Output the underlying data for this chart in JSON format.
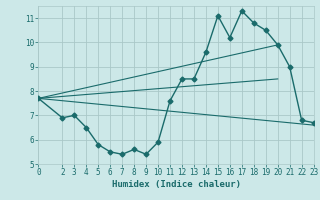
{
  "title": "",
  "xlabel": "Humidex (Indice chaleur)",
  "background_color": "#cce8e8",
  "grid_color": "#aac8c8",
  "line_color": "#1a6b6b",
  "xlim": [
    0,
    23
  ],
  "ylim": [
    5,
    11.5
  ],
  "yticks": [
    5,
    6,
    7,
    8,
    9,
    10,
    11
  ],
  "xticks": [
    0,
    2,
    3,
    4,
    5,
    6,
    7,
    8,
    9,
    10,
    11,
    12,
    13,
    14,
    15,
    16,
    17,
    18,
    19,
    20,
    21,
    22,
    23
  ],
  "series_main": {
    "x": [
      0,
      2,
      3,
      4,
      5,
      6,
      7,
      8,
      9,
      10,
      11,
      12,
      13,
      14,
      15,
      16,
      17,
      18,
      19,
      20,
      21,
      22,
      23
    ],
    "y": [
      7.7,
      6.9,
      7.0,
      6.5,
      5.8,
      5.5,
      5.4,
      5.6,
      5.4,
      5.9,
      7.6,
      8.5,
      8.5,
      9.6,
      11.1,
      10.2,
      11.3,
      10.8,
      10.5,
      9.9,
      9.0,
      6.8,
      6.7
    ]
  },
  "series_lines": [
    {
      "x": [
        0,
        20
      ],
      "y": [
        7.7,
        9.9
      ]
    },
    {
      "x": [
        0,
        23
      ],
      "y": [
        7.7,
        6.6
      ]
    },
    {
      "x": [
        0,
        20
      ],
      "y": [
        7.7,
        8.5
      ]
    }
  ]
}
